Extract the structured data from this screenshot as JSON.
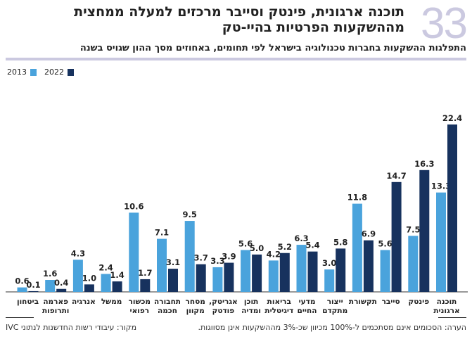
{
  "header": {
    "number": "33",
    "title": "תוכנה ארגונית, פינטק וסייבר מרכזים למעלה ממחצית מההשקעות הפרטיות בהיי-טק",
    "subtitle": "התפלגות ההשקעות בחברות טכנולוגיה בישראל לפי תחומים, באחוזים מסך ההון שגויס בשנה"
  },
  "footer": {
    "note": "הערה: הסכומים אינם מסתכמים ל-100% מכיוון שכ-3% מההשקעות אינן מסווגות.",
    "source": "מקור: עיבודי רשות החדשנות לנתוני IVC"
  },
  "chart_data": {
    "type": "bar",
    "categories": [
      [
        "תוכנה",
        "ארגונית"
      ],
      [
        "פינטק"
      ],
      [
        "סייבר"
      ],
      [
        "תקשורת"
      ],
      [
        "ייצור",
        "מתקדם"
      ],
      [
        "מדעי",
        "החיים"
      ],
      [
        "בריאות",
        "דיגיטלית"
      ],
      [
        "תוכן",
        "ומדיה"
      ],
      [
        "אגריטק,",
        "פודטק",
        "ומים"
      ],
      [
        "מסחר",
        "מקוון"
      ],
      [
        "תחבורה",
        "חכמה"
      ],
      [
        "מכשור",
        "רפואי"
      ],
      [
        "ממשל"
      ],
      [
        "אנרגיה"
      ],
      [
        "פארמה",
        "ותרופות"
      ],
      [
        "ביטחון"
      ]
    ],
    "category_order": "right-to-left",
    "series": [
      {
        "name": "2013",
        "color": "#4aa3dc",
        "values": [
          13.3,
          7.5,
          5.6,
          11.8,
          3.0,
          6.3,
          4.2,
          5.6,
          3.3,
          9.5,
          7.1,
          10.6,
          2.4,
          4.3,
          1.6,
          0.6
        ]
      },
      {
        "name": "2022",
        "color": "#17325e",
        "values": [
          22.4,
          16.3,
          14.7,
          6.9,
          5.8,
          5.4,
          5.2,
          5.0,
          3.9,
          3.7,
          3.1,
          1.7,
          1.4,
          1.0,
          0.4,
          0.1
        ]
      }
    ],
    "ylim": [
      0,
      22.4
    ],
    "grid": false,
    "legend": "top-left",
    "data_labels": true
  }
}
